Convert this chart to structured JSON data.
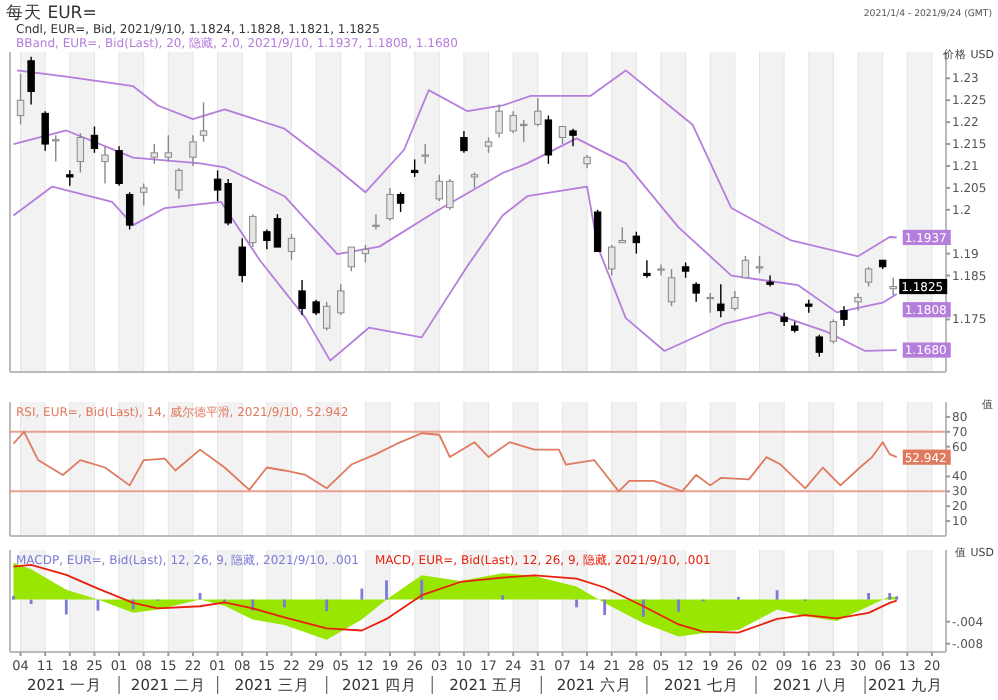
{
  "chart_data": [
    {
      "type": "candlestick",
      "title": "每天 EUR=",
      "subtitle": "Cndl, EUR=, Bid, 2021/9/10, 1.1824, 1.1828, 1.1821, 1.1825",
      "ylabel": "价格 USD",
      "annotations": [
        "2021/1/4 - 2021/9/24 (GMT)",
        {
          "text": "1.1937",
          "x": "2021-09-10",
          "y": 1.1937
        },
        {
          "text": "1.1825",
          "x": "2021-09-09",
          "y": 1.1825
        },
        {
          "text": "1.1808",
          "x": "2021-09-10",
          "y": 1.1808
        },
        {
          "text": "1.1680",
          "x": "2021-09-10",
          "y": 1.168
        }
      ],
      "xlim": [
        "2021-01-01",
        "2021-09-24"
      ],
      "ylim": [
        1.163,
        1.236
      ],
      "yticks": [
        1.175,
        1.185,
        1.19,
        1.2,
        1.205,
        1.21,
        1.215,
        1.22,
        1.225,
        1.23
      ],
      "grid": "x",
      "tick_labels": "y",
      "xticks": [
        {
          "value": "2021-01-04",
          "label": null
        },
        {
          "value": "2021-01-11",
          "label": null
        },
        {
          "value": "2021-01-18",
          "label": null
        },
        {
          "value": "2021-01-25",
          "label": null
        },
        {
          "value": "2021-02-01",
          "label": null
        },
        {
          "value": "2021-02-08",
          "label": null
        },
        {
          "value": "2021-02-15",
          "label": null
        },
        {
          "value": "2021-02-22",
          "label": null
        },
        {
          "value": "2021-03-01",
          "label": null
        },
        {
          "value": "2021-03-08",
          "label": null
        },
        {
          "value": "2021-03-15",
          "label": null
        },
        {
          "value": "2021-03-22",
          "label": null
        },
        {
          "value": "2021-03-29",
          "label": null
        },
        {
          "value": "2021-04-05",
          "label": null
        },
        {
          "value": "2021-04-12",
          "label": null
        },
        {
          "value": "2021-04-19",
          "label": null
        },
        {
          "value": "2021-04-26",
          "label": null
        },
        {
          "value": "2021-05-03",
          "label": null
        },
        {
          "value": "2021-05-10",
          "label": null
        },
        {
          "value": "2021-05-17",
          "label": null
        },
        {
          "value": "2021-05-24",
          "label": null
        },
        {
          "value": "2021-05-31",
          "label": null
        },
        {
          "value": "2021-06-07",
          "label": null
        },
        {
          "value": "2021-06-14",
          "label": null
        },
        {
          "value": "2021-06-21",
          "label": null
        },
        {
          "value": "2021-06-28",
          "label": null
        },
        {
          "value": "2021-07-05",
          "label": null
        },
        {
          "value": "2021-07-12",
          "label": null
        },
        {
          "value": "2021-07-19",
          "label": null
        },
        {
          "value": "2021-07-26",
          "label": null
        },
        {
          "value": "2021-08-02",
          "label": null
        },
        {
          "value": "2021-08-09",
          "label": null
        },
        {
          "value": "2021-08-16",
          "label": null
        },
        {
          "value": "2021-08-23",
          "label": null
        },
        {
          "value": "2021-08-30",
          "label": null
        },
        {
          "value": "2021-09-06",
          "label": null
        },
        {
          "value": "2021-09-13",
          "label": null
        },
        {
          "value": "2021-09-20",
          "label": null
        }
      ],
      "x": [
        "2021-01-04",
        "2021-01-07",
        "2021-01-11",
        "2021-01-14",
        "2021-01-18",
        "2021-01-21",
        "2021-01-25",
        "2021-01-28",
        "2021-02-01",
        "2021-02-04",
        "2021-02-08",
        "2021-02-11",
        "2021-02-15",
        "2021-02-18",
        "2021-02-22",
        "2021-02-25",
        "2021-03-01",
        "2021-03-04",
        "2021-03-08",
        "2021-03-11",
        "2021-03-15",
        "2021-03-18",
        "2021-03-22",
        "2021-03-25",
        "2021-03-29",
        "2021-04-01",
        "2021-04-05",
        "2021-04-08",
        "2021-04-12",
        "2021-04-15",
        "2021-04-19",
        "2021-04-22",
        "2021-04-26",
        "2021-04-29",
        "2021-05-03",
        "2021-05-06",
        "2021-05-10",
        "2021-05-13",
        "2021-05-17",
        "2021-05-20",
        "2021-05-24",
        "2021-05-27",
        "2021-05-31",
        "2021-06-03",
        "2021-06-07",
        "2021-06-10",
        "2021-06-14",
        "2021-06-17",
        "2021-06-21",
        "2021-06-24",
        "2021-06-28",
        "2021-07-01",
        "2021-07-05",
        "2021-07-08",
        "2021-07-12",
        "2021-07-15",
        "2021-07-19",
        "2021-07-22",
        "2021-07-26",
        "2021-07-29",
        "2021-08-02",
        "2021-08-05",
        "2021-08-09",
        "2021-08-12",
        "2021-08-16",
        "2021-08-19",
        "2021-08-23",
        "2021-08-26",
        "2021-08-30",
        "2021-09-02",
        "2021-09-06",
        "2021-09-09"
      ],
      "ohlc": [
        [
          1.2215,
          1.231,
          1.2195,
          1.225
        ],
        [
          1.234,
          1.2349,
          1.224,
          1.227
        ],
        [
          1.222,
          1.2225,
          1.2135,
          1.215
        ],
        [
          1.216,
          1.217,
          1.211,
          1.216
        ],
        [
          1.208,
          1.209,
          1.2055,
          1.2075
        ],
        [
          1.211,
          1.2175,
          1.2085,
          1.2165
        ],
        [
          1.217,
          1.219,
          1.213,
          1.214
        ],
        [
          1.211,
          1.2145,
          1.206,
          1.2125
        ],
        [
          1.2135,
          1.2145,
          1.2055,
          1.206
        ],
        [
          1.2035,
          1.204,
          1.1955,
          1.1965
        ],
        [
          1.204,
          1.206,
          1.201,
          1.205
        ],
        [
          1.212,
          1.215,
          1.2105,
          1.213
        ],
        [
          1.212,
          1.217,
          1.211,
          1.213
        ],
        [
          1.2045,
          1.2095,
          1.2025,
          1.209
        ],
        [
          1.212,
          1.217,
          1.21,
          1.2155
        ],
        [
          1.217,
          1.2245,
          1.2155,
          1.218
        ],
        [
          1.207,
          1.209,
          1.202,
          1.2045
        ],
        [
          1.206,
          1.207,
          1.1965,
          1.197
        ],
        [
          1.1915,
          1.1935,
          1.1835,
          1.185
        ],
        [
          1.1925,
          1.199,
          1.1915,
          1.1985
        ],
        [
          1.195,
          1.1955,
          1.191,
          1.193
        ],
        [
          1.198,
          1.199,
          1.1915,
          1.1915
        ],
        [
          1.1905,
          1.1945,
          1.1885,
          1.1935
        ],
        [
          1.1815,
          1.184,
          1.176,
          1.1775
        ],
        [
          1.179,
          1.1795,
          1.176,
          1.1765
        ],
        [
          1.173,
          1.179,
          1.1725,
          1.178
        ],
        [
          1.1765,
          1.183,
          1.176,
          1.1815
        ],
        [
          1.187,
          1.1915,
          1.186,
          1.1915
        ],
        [
          1.19,
          1.192,
          1.188,
          1.191
        ],
        [
          1.1965,
          1.199,
          1.1955,
          1.1965
        ],
        [
          1.198,
          1.205,
          1.1975,
          1.2035
        ],
        [
          1.2035,
          1.204,
          1.1995,
          1.2015
        ],
        [
          1.209,
          1.2115,
          1.2075,
          1.2085
        ],
        [
          1.2125,
          1.215,
          1.2105,
          1.2125
        ],
        [
          1.2025,
          1.208,
          1.202,
          1.2065
        ],
        [
          1.2005,
          1.207,
          1.2,
          1.2065
        ],
        [
          1.2165,
          1.218,
          1.213,
          1.2135
        ],
        [
          1.2075,
          1.2085,
          1.205,
          1.208
        ],
        [
          1.2145,
          1.2165,
          1.213,
          1.2155
        ],
        [
          1.2175,
          1.224,
          1.2165,
          1.2225
        ],
        [
          1.218,
          1.2225,
          1.2175,
          1.2215
        ],
        [
          1.2195,
          1.2205,
          1.2155,
          1.2195
        ],
        [
          1.2195,
          1.2255,
          1.219,
          1.2225
        ],
        [
          1.2205,
          1.2215,
          1.2105,
          1.2125
        ],
        [
          1.2165,
          1.219,
          1.215,
          1.219
        ],
        [
          1.218,
          1.2185,
          1.2145,
          1.217
        ],
        [
          1.2105,
          1.2125,
          1.2095,
          1.212
        ],
        [
          1.1995,
          1.2,
          1.1905,
          1.1905
        ],
        [
          1.1865,
          1.192,
          1.185,
          1.1915
        ],
        [
          1.1925,
          1.196,
          1.1925,
          1.193
        ],
        [
          1.194,
          1.195,
          1.19,
          1.1925
        ],
        [
          1.1855,
          1.1885,
          1.1845,
          1.185
        ],
        [
          1.1865,
          1.1875,
          1.185,
          1.1865
        ],
        [
          1.179,
          1.1865,
          1.178,
          1.1845
        ],
        [
          1.187,
          1.188,
          1.1845,
          1.186
        ],
        [
          1.183,
          1.1835,
          1.179,
          1.181
        ],
        [
          1.18,
          1.181,
          1.1765,
          1.18
        ],
        [
          1.1785,
          1.183,
          1.1755,
          1.177
        ],
        [
          1.1775,
          1.1815,
          1.177,
          1.18
        ],
        [
          1.1845,
          1.1895,
          1.1845,
          1.1885
        ],
        [
          1.187,
          1.1895,
          1.1855,
          1.187
        ],
        [
          1.1835,
          1.185,
          1.1825,
          1.183
        ],
        [
          1.1755,
          1.1765,
          1.1735,
          1.1745
        ],
        [
          1.1735,
          1.1745,
          1.172,
          1.1725
        ],
        [
          1.1785,
          1.1795,
          1.1765,
          1.178
        ],
        [
          1.171,
          1.1715,
          1.1665,
          1.1675
        ],
        [
          1.17,
          1.175,
          1.1695,
          1.1745
        ],
        [
          1.177,
          1.178,
          1.1735,
          1.175
        ],
        [
          1.179,
          1.181,
          1.177,
          1.18
        ],
        [
          1.1835,
          1.187,
          1.1825,
          1.1865
        ],
        [
          1.1885,
          1.1885,
          1.1865,
          1.187
        ],
        [
          1.182,
          1.1845,
          1.1805,
          1.1825
        ]
      ],
      "series": [
        {
          "type": "line",
          "name": "BBand, EUR=, Bid(Last), 20, 隐藏, 2.0, 2021/9/10, 1.1937, 1.1808, 1.1680",
          "color": "#b57edc",
          "x": [
            "2021-01-03",
            "2021-01-17",
            "2021-02-05",
            "2021-02-12",
            "2021-02-22",
            "2021-03-03",
            "2021-03-20",
            "2021-04-04",
            "2021-04-12",
            "2021-04-23",
            "2021-04-30",
            "2021-05-11",
            "2021-05-21",
            "2021-05-29",
            "2021-06-15",
            "2021-06-25",
            "2021-07-14",
            "2021-07-25",
            "2021-08-11",
            "2021-08-30",
            "2021-09-08",
            "2021-09-10"
          ],
          "values": [
            1.2318,
            1.2304,
            1.2282,
            1.2238,
            1.2207,
            1.2229,
            1.2185,
            1.2093,
            1.204,
            1.2137,
            1.2273,
            1.2225,
            1.2238,
            1.226,
            1.226,
            1.2318,
            1.2194,
            1.2004,
            1.193,
            1.1894,
            1.1938,
            1.1937
          ]
        },
        {
          "type": "line",
          "color": "#b57edc",
          "x": [
            "2021-01-02",
            "2021-01-17",
            "2021-02-05",
            "2021-02-24",
            "2021-03-03",
            "2021-03-20",
            "2021-04-04",
            "2021-04-16",
            "2021-05-02",
            "2021-05-21",
            "2021-05-28",
            "2021-06-11",
            "2021-06-25",
            "2021-07-10",
            "2021-07-25",
            "2021-08-13",
            "2021-08-24",
            "2021-09-06",
            "2021-09-10"
          ],
          "values": [
            1.215,
            1.2181,
            1.2119,
            1.2106,
            1.2097,
            1.2031,
            1.1899,
            1.1916,
            1.1996,
            1.2084,
            1.2106,
            1.2163,
            1.2106,
            1.196,
            1.185,
            1.1828,
            1.1766,
            1.1788,
            1.1808
          ]
        },
        {
          "type": "line",
          "color": "#b57edc",
          "x": [
            "2021-01-02",
            "2021-01-13",
            "2021-01-30",
            "2021-02-05",
            "2021-02-14",
            "2021-03-02",
            "2021-03-13",
            "2021-03-26",
            "2021-04-02",
            "2021-04-13",
            "2021-04-28",
            "2021-05-11",
            "2021-05-21",
            "2021-05-28",
            "2021-06-14",
            "2021-06-17",
            "2021-06-25",
            "2021-07-06",
            "2021-07-23",
            "2021-08-05",
            "2021-08-21",
            "2021-09-01",
            "2021-09-10"
          ],
          "values": [
            1.1987,
            1.2053,
            1.2018,
            1.1965,
            1.2004,
            1.2018,
            1.1885,
            1.1753,
            1.1656,
            1.1731,
            1.1709,
            1.1872,
            1.1987,
            1.2031,
            1.2053,
            1.1916,
            1.1753,
            1.1678,
            1.174,
            1.1766,
            1.1722,
            1.1678,
            1.168
          ]
        }
      ]
    },
    {
      "type": "line",
      "ylabel": "值",
      "xlim": [
        "2021-01-01",
        "2021-09-24"
      ],
      "ylim": [
        0,
        90
      ],
      "yticks": [
        10,
        20,
        30,
        40,
        60,
        70,
        80
      ],
      "grid": "x",
      "tick_labels": "y",
      "xticks": [
        {
          "value": "2021-01-04",
          "label": null
        },
        {
          "value": "2021-01-11",
          "label": null
        },
        {
          "value": "2021-01-18",
          "label": null
        },
        {
          "value": "2021-01-25",
          "label": null
        },
        {
          "value": "2021-02-01",
          "label": null
        },
        {
          "value": "2021-02-08",
          "label": null
        },
        {
          "value": "2021-02-15",
          "label": null
        },
        {
          "value": "2021-02-22",
          "label": null
        },
        {
          "value": "2021-03-01",
          "label": null
        },
        {
          "value": "2021-03-08",
          "label": null
        },
        {
          "value": "2021-03-15",
          "label": null
        },
        {
          "value": "2021-03-22",
          "label": null
        },
        {
          "value": "2021-03-29",
          "label": null
        },
        {
          "value": "2021-04-05",
          "label": null
        },
        {
          "value": "2021-04-12",
          "label": null
        },
        {
          "value": "2021-04-19",
          "label": null
        },
        {
          "value": "2021-04-26",
          "label": null
        },
        {
          "value": "2021-05-03",
          "label": null
        },
        {
          "value": "2021-05-10",
          "label": null
        },
        {
          "value": "2021-05-17",
          "label": null
        },
        {
          "value": "2021-05-24",
          "label": null
        },
        {
          "value": "2021-05-31",
          "label": null
        },
        {
          "value": "2021-06-07",
          "label": null
        },
        {
          "value": "2021-06-14",
          "label": null
        },
        {
          "value": "2021-06-21",
          "label": null
        },
        {
          "value": "2021-06-28",
          "label": null
        },
        {
          "value": "2021-07-05",
          "label": null
        },
        {
          "value": "2021-07-12",
          "label": null
        },
        {
          "value": "2021-07-19",
          "label": null
        },
        {
          "value": "2021-07-26",
          "label": null
        },
        {
          "value": "2021-08-02",
          "label": null
        },
        {
          "value": "2021-08-09",
          "label": null
        },
        {
          "value": "2021-08-16",
          "label": null
        },
        {
          "value": "2021-08-23",
          "label": null
        },
        {
          "value": "2021-08-30",
          "label": null
        },
        {
          "value": "2021-09-06",
          "label": null
        },
        {
          "value": "2021-09-13",
          "label": null
        },
        {
          "value": "2021-09-20",
          "label": null
        }
      ],
      "ref_lines": [
        {
          "axis": "y",
          "value": 70,
          "color": "#e8a090"
        },
        {
          "axis": "y",
          "value": 30,
          "color": "#e8a090"
        }
      ],
      "annotations": [
        {
          "text": "52.942",
          "x": "2021-09-10",
          "y": 52.942
        }
      ],
      "series": [
        {
          "name": "RSI, EUR=, Bid(Last), 14, 威尔德平滑, 2021/9/10, 52.942",
          "color": "#e07a5f",
          "x": [
            "2021-01-02",
            "2021-01-05",
            "2021-01-09",
            "2021-01-16",
            "2021-01-21",
            "2021-01-28",
            "2021-02-04",
            "2021-02-08",
            "2021-02-14",
            "2021-02-17",
            "2021-02-24",
            "2021-03-03",
            "2021-03-10",
            "2021-03-15",
            "2021-03-20",
            "2021-03-26",
            "2021-04-01",
            "2021-04-08",
            "2021-04-15",
            "2021-04-21",
            "2021-04-28",
            "2021-05-03",
            "2021-05-06",
            "2021-05-13",
            "2021-05-17",
            "2021-05-23",
            "2021-05-30",
            "2021-06-06",
            "2021-06-08",
            "2021-06-16",
            "2021-06-23",
            "2021-06-26",
            "2021-07-03",
            "2021-07-11",
            "2021-07-15",
            "2021-07-19",
            "2021-07-22",
            "2021-07-30",
            "2021-08-04",
            "2021-08-08",
            "2021-08-15",
            "2021-08-20",
            "2021-08-25",
            "2021-08-31",
            "2021-09-03",
            "2021-09-06",
            "2021-09-08",
            "2021-09-10"
          ],
          "values": [
            62,
            70,
            51,
            41,
            51,
            46,
            34,
            51,
            52,
            44,
            58,
            46,
            31,
            46,
            44,
            41,
            32,
            48,
            55,
            62,
            69,
            68,
            53,
            63,
            53,
            63,
            58,
            58,
            48,
            51,
            30,
            37,
            37,
            30,
            41,
            34,
            39,
            38,
            53,
            48,
            32,
            46,
            34,
            47,
            53,
            63,
            55,
            52.942
          ]
        }
      ]
    },
    {
      "type": "area",
      "ylabel": "值 USD",
      "xlim": [
        "2021-01-01",
        "2021-09-24"
      ],
      "ylim": [
        -0.0095,
        0.009
      ],
      "yticks": [
        {
          "value": -0.004,
          "label": "-.004"
        },
        {
          "value": -0.008,
          "label": "-.008"
        }
      ],
      "grid": "x",
      "xticks": [
        {
          "value": "2021-01-04",
          "label": "04"
        },
        {
          "value": "2021-01-11",
          "label": "11"
        },
        {
          "value": "2021-01-18",
          "label": "18"
        },
        {
          "value": "2021-01-25",
          "label": "25"
        },
        {
          "value": "2021-02-01",
          "label": "01"
        },
        {
          "value": "2021-02-08",
          "label": "08"
        },
        {
          "value": "2021-02-15",
          "label": "15"
        },
        {
          "value": "2021-02-22",
          "label": "22"
        },
        {
          "value": "2021-03-01",
          "label": "01"
        },
        {
          "value": "2021-03-08",
          "label": "08"
        },
        {
          "value": "2021-03-15",
          "label": "15"
        },
        {
          "value": "2021-03-22",
          "label": "22"
        },
        {
          "value": "2021-03-29",
          "label": "29"
        },
        {
          "value": "2021-04-05",
          "label": "05"
        },
        {
          "value": "2021-04-12",
          "label": "12"
        },
        {
          "value": "2021-04-19",
          "label": "19"
        },
        {
          "value": "2021-04-26",
          "label": "26"
        },
        {
          "value": "2021-05-03",
          "label": "03"
        },
        {
          "value": "2021-05-10",
          "label": "10"
        },
        {
          "value": "2021-05-17",
          "label": "17"
        },
        {
          "value": "2021-05-24",
          "label": "24"
        },
        {
          "value": "2021-05-31",
          "label": "31"
        },
        {
          "value": "2021-06-07",
          "label": "07"
        },
        {
          "value": "2021-06-14",
          "label": "14"
        },
        {
          "value": "2021-06-21",
          "label": "21"
        },
        {
          "value": "2021-06-28",
          "label": "28"
        },
        {
          "value": "2021-07-05",
          "label": "05"
        },
        {
          "value": "2021-07-12",
          "label": "12"
        },
        {
          "value": "2021-07-19",
          "label": "19"
        },
        {
          "value": "2021-07-26",
          "label": "26"
        },
        {
          "value": "2021-08-02",
          "label": "02"
        },
        {
          "value": "2021-08-09",
          "label": "09"
        },
        {
          "value": "2021-08-16",
          "label": "16"
        },
        {
          "value": "2021-08-23",
          "label": "23"
        },
        {
          "value": "2021-08-30",
          "label": "30"
        },
        {
          "value": "2021-09-06",
          "label": "06"
        },
        {
          "value": "2021-09-13",
          "label": "13"
        },
        {
          "value": "2021-09-20",
          "label": "20"
        }
      ],
      "annotations": [
        "2021 一月",
        "2021 二月",
        "2021 三月",
        "2021 四月",
        "2021 五月",
        "2021 六月",
        "2021 七月",
        "2021 八月",
        "2021 九月"
      ],
      "x": [
        "2021-01-02",
        "2021-01-07",
        "2021-01-17",
        "2021-01-26",
        "2021-02-05",
        "2021-02-12",
        "2021-02-24",
        "2021-03-03",
        "2021-03-11",
        "2021-03-20",
        "2021-04-01",
        "2021-04-11",
        "2021-04-18",
        "2021-04-28",
        "2021-05-09",
        "2021-05-21",
        "2021-05-30",
        "2021-06-11",
        "2021-06-19",
        "2021-06-30",
        "2021-07-10",
        "2021-07-17",
        "2021-07-27",
        "2021-08-07",
        "2021-08-15",
        "2021-08-24",
        "2021-09-02",
        "2021-09-08",
        "2021-09-10"
      ],
      "series": [
        {
          "type": "bar",
          "name": "MACDP, EUR=, Bid(Last), 12, 26, 9, 隐藏, 2021/9/10, .001",
          "color": "#7b7bd6",
          "values": [
            0.0007,
            -0.0008,
            -0.0027,
            -0.002,
            -0.0018,
            -0.0002,
            0.0012,
            -0.0006,
            -0.002,
            -0.0014,
            -0.0021,
            0.002,
            0.0035,
            0.0036,
            null,
            0.0008,
            null,
            -0.0014,
            -0.0028,
            -0.0031,
            -0.0022,
            -0.0003,
            0.0005,
            0.0017,
            -0.0002,
            null,
            0.0012,
            0.0012,
            0.0006
          ]
        },
        {
          "type": "area",
          "color": "#99e600",
          "values": [
            0.0067,
            0.0055,
            0.0018,
            0,
            -0.0024,
            -0.0018,
            0,
            -0.0011,
            -0.0036,
            -0.0046,
            -0.0073,
            -0.0036,
            0,
            0.0044,
            0.0034,
            0.0048,
            0.0043,
            0.0024,
            -0.0006,
            -0.0043,
            -0.0067,
            -0.0061,
            -0.0055,
            -0.0018,
            -0.003,
            -0.0039,
            -0.0012,
            0.0006,
            0.0004
          ]
        },
        {
          "type": "line",
          "name": "MACD, EUR=, Bid(Last), 12, 26, 9, 隐藏, 2021/9/10, .001",
          "color": "#e8200c",
          "values": [
            0.006,
            0.0063,
            0.0045,
            0.002,
            -0.0006,
            -0.0016,
            -0.0012,
            -0.0005,
            -0.0016,
            -0.0032,
            -0.0052,
            -0.0056,
            -0.0035,
            0.0008,
            0.0032,
            0.004,
            0.0044,
            0.0038,
            0.0022,
            -0.0012,
            -0.0045,
            -0.0058,
            -0.006,
            -0.0035,
            -0.0028,
            -0.0034,
            -0.0024,
            -0.0006,
            -0.0002
          ]
        }
      ]
    }
  ]
}
